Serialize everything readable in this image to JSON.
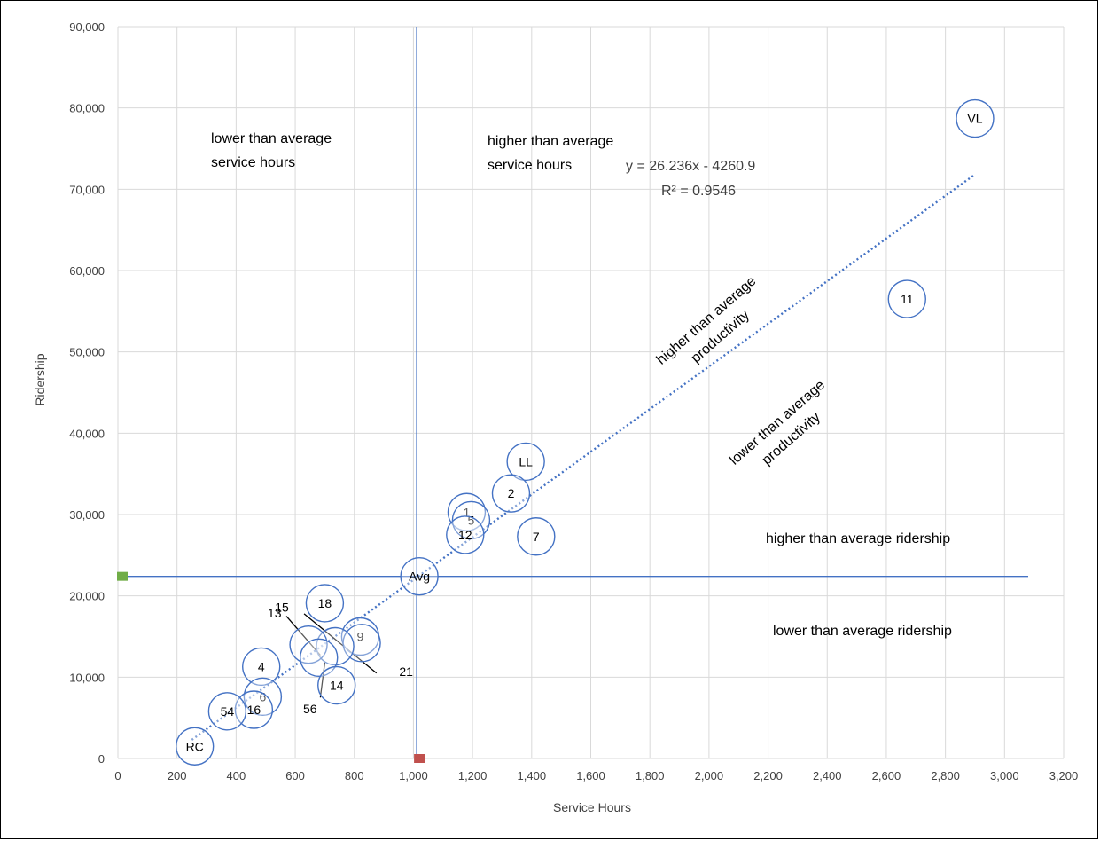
{
  "chart_data": {
    "type": "scatter",
    "title": "",
    "xlabel": "Service Hours",
    "ylabel": "Ridership",
    "xlim": [
      0,
      3200
    ],
    "ylim": [
      0,
      90000
    ],
    "grid": true,
    "x_ticks": [
      "0",
      "200",
      "400",
      "600",
      "800",
      "1,000",
      "1,200",
      "1,400",
      "1,600",
      "1,800",
      "2,000",
      "2,200",
      "2,400",
      "2,600",
      "2,800",
      "3,000",
      "3,200"
    ],
    "y_ticks": [
      "0",
      "10,000",
      "20,000",
      "30,000",
      "40,000",
      "50,000",
      "60,000",
      "70,000",
      "80,000",
      "90,000"
    ],
    "points": [
      {
        "label": "VL",
        "x": 2900,
        "y": 78700
      },
      {
        "label": "11",
        "x": 2670,
        "y": 56500
      },
      {
        "label": "LL",
        "x": 1380,
        "y": 36500
      },
      {
        "label": "2",
        "x": 1330,
        "y": 32600
      },
      {
        "label": "1",
        "x": 1180,
        "y": 30300
      },
      {
        "label": "5",
        "x": 1195,
        "y": 29300
      },
      {
        "label": "12",
        "x": 1175,
        "y": 27500
      },
      {
        "label": "7",
        "x": 1415,
        "y": 27300
      },
      {
        "label": "Avg",
        "x": 1020,
        "y": 22400
      },
      {
        "label": "18",
        "x": 700,
        "y": 19100
      },
      {
        "label": "9",
        "x": 820,
        "y": 15000
      },
      {
        "label": "",
        "x": 825,
        "y": 14200
      },
      {
        "label": "",
        "x": 735,
        "y": 13800
      },
      {
        "label": "",
        "x": 645,
        "y": 14000
      },
      {
        "label": "",
        "x": 680,
        "y": 12400
      },
      {
        "label": "4",
        "x": 485,
        "y": 11300
      },
      {
        "label": "14",
        "x": 740,
        "y": 9000
      },
      {
        "label": "6",
        "x": 490,
        "y": 7600
      },
      {
        "label": "16",
        "x": 460,
        "y": 6000
      },
      {
        "label": "54",
        "x": 370,
        "y": 5800
      },
      {
        "label": "RC",
        "x": 260,
        "y": 1500
      }
    ],
    "outside_labels": [
      {
        "label": "15",
        "x": 555,
        "y": 18600
      },
      {
        "label": "13",
        "x": 530,
        "y": 17900
      },
      {
        "label": "21",
        "x": 975,
        "y": 10700
      },
      {
        "label": "56",
        "x": 650,
        "y": 6100
      }
    ],
    "leader_lines": [
      {
        "x1": 570,
        "y1": 17500,
        "x2": 685,
        "y2": 12700
      },
      {
        "x1": 630,
        "y1": 17800,
        "x2": 875,
        "y2": 10500
      },
      {
        "x1": 700,
        "y1": 11800,
        "x2": 685,
        "y2": 7500
      }
    ],
    "trendline": {
      "slope": 26.236,
      "intercept": -4260.9,
      "x_start": 250,
      "x_end": 2900,
      "equation": "y = 26.236x - 4260.9",
      "r2": "R² = 0.9546"
    },
    "average_lines": {
      "x": 1020,
      "y": 22400
    },
    "average_markers": [
      {
        "x": 15,
        "y": 22400,
        "color": "#70ad47"
      },
      {
        "x": 1020,
        "y": 0,
        "color": "#c0504d"
      }
    ],
    "annotations": {
      "lower_service_1": "lower than average",
      "lower_service_2": "service hours",
      "higher_service_1": "higher than average",
      "higher_service_2": "service hours",
      "higher_prod_1": "higher than average",
      "higher_prod_2": "productivity",
      "lower_prod_1": "lower than average",
      "lower_prod_2": "productivity",
      "higher_ridership": "higher than average ridership",
      "lower_ridership": "lower than average ridership"
    },
    "colors": {
      "marker": "#4472c4",
      "grid": "#d9d9d9",
      "avg_line": "#4472c4",
      "trend": "#4472c4"
    }
  }
}
